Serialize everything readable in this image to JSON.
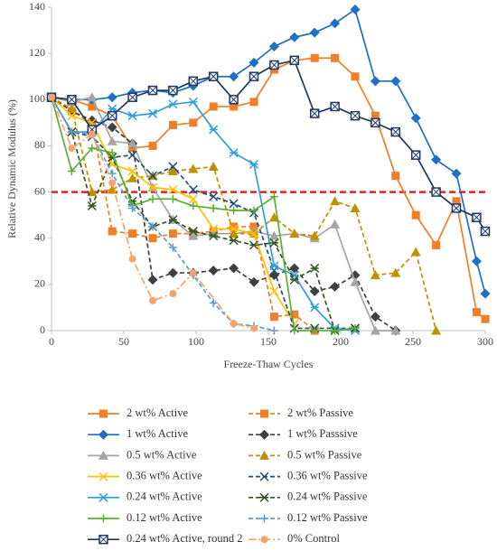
{
  "chart_data": {
    "type": "line",
    "xlabel": "Freeze-Thaw Cycles",
    "ylabel": "Relative Dynamic Modulus (%)",
    "xlim": [
      0,
      300
    ],
    "xticks": [
      0,
      50,
      100,
      150,
      200,
      250,
      300
    ],
    "ylim": [
      0,
      140
    ],
    "yticks": [
      0,
      20,
      40,
      60,
      80,
      100,
      120,
      140
    ],
    "threshold": 60,
    "threshold_color": "#e32222",
    "series": [
      {
        "name": "2 wt% Active",
        "color": "#f07f27",
        "marker": "square",
        "dash": "solid",
        "x": [
          0,
          14,
          28,
          42,
          56,
          70,
          84,
          98,
          112,
          126,
          140,
          154,
          168,
          182,
          196,
          210,
          224,
          238,
          252,
          266,
          280,
          294,
          300
        ],
        "values": [
          101,
          100,
          97,
          93,
          79,
          80,
          89,
          90,
          97,
          97,
          99,
          113,
          117,
          118,
          118,
          110,
          93,
          67,
          50,
          37,
          56,
          8,
          5
        ]
      },
      {
        "name": "2 wt% Passive",
        "color": "#f07f27",
        "marker": "square",
        "dash": "dash",
        "x": [
          0,
          14,
          28,
          42,
          56,
          70,
          84,
          98,
          112,
          126,
          140,
          154,
          168,
          182
        ],
        "values": [
          101,
          95,
          90,
          43,
          42,
          40,
          42,
          42,
          43,
          45,
          45,
          6,
          7,
          0
        ]
      },
      {
        "name": "1 wt% Active",
        "color": "#1f6fc5",
        "marker": "diamond",
        "dash": "solid",
        "x": [
          0,
          14,
          28,
          42,
          56,
          70,
          84,
          98,
          112,
          126,
          140,
          154,
          168,
          182,
          196,
          210,
          224,
          238,
          252,
          266,
          280,
          294,
          300
        ],
        "values": [
          101,
          100,
          100,
          101,
          103,
          104,
          103,
          106,
          110,
          110,
          116,
          123,
          127,
          129,
          133,
          139,
          108,
          108,
          92,
          74,
          68,
          30,
          16
        ]
      },
      {
        "name": "1 wt% Passsive",
        "color": "#404040",
        "marker": "diamond",
        "dash": "dash",
        "x": [
          0,
          14,
          28,
          42,
          56,
          70,
          84,
          98,
          112,
          126,
          140,
          154,
          168,
          182,
          196,
          210,
          224,
          238
        ],
        "values": [
          101,
          95,
          91,
          88,
          81,
          22,
          25,
          25,
          26,
          27,
          21,
          24,
          27,
          17,
          19,
          24,
          6,
          0
        ]
      },
      {
        "name": "0.5 wt% Active",
        "color": "#a5a5a5",
        "marker": "triangle",
        "dash": "solid",
        "x": [
          0,
          14,
          28,
          42,
          56,
          70,
          84,
          98,
          112,
          126,
          140,
          154,
          168,
          182,
          196,
          210,
          224,
          238
        ],
        "values": [
          101,
          99,
          101,
          82,
          81,
          62,
          48,
          41,
          42,
          42,
          43,
          41,
          42,
          40,
          46,
          21,
          0,
          0
        ]
      },
      {
        "name": "0.5 wt% Passive",
        "color": "#bf9000",
        "marker": "triangle",
        "dash": "dash",
        "x": [
          0,
          14,
          28,
          42,
          56,
          70,
          84,
          98,
          112,
          126,
          140,
          154,
          168,
          182,
          196,
          210,
          224,
          238,
          252,
          266
        ],
        "values": [
          101,
          96,
          60,
          61,
          66,
          67,
          69,
          70,
          71,
          42,
          42,
          49,
          42,
          41,
          56,
          53,
          24,
          25,
          34,
          0
        ]
      },
      {
        "name": "0.36 wt% Active",
        "color": "#ffc000",
        "marker": "x",
        "dash": "solid",
        "x": [
          0,
          14,
          28,
          42,
          56,
          70,
          84,
          98,
          112,
          126,
          140,
          154,
          168
        ],
        "values": [
          101,
          93,
          90,
          72,
          69,
          62,
          61,
          57,
          44,
          44,
          42,
          17,
          3
        ]
      },
      {
        "name": "0.36 wt% Passive",
        "color": "#1f4e79",
        "marker": "x",
        "dash": "dash",
        "x": [
          0,
          14,
          28,
          42,
          56,
          70,
          84,
          98,
          112,
          126,
          140,
          154,
          168,
          182,
          196,
          210
        ],
        "values": [
          101,
          86,
          84,
          75,
          76,
          67,
          71,
          61,
          58,
          55,
          51,
          26,
          1,
          1,
          1,
          1
        ]
      },
      {
        "name": "0.24 wt% Active",
        "color": "#2e9fd9",
        "marker": "star",
        "dash": "solid",
        "x": [
          0,
          14,
          28,
          42,
          56,
          70,
          84,
          98,
          112,
          126,
          140,
          154,
          168,
          182,
          196,
          210
        ],
        "values": [
          101,
          86,
          86,
          96,
          93,
          94,
          98,
          99,
          87,
          77,
          72,
          28,
          24,
          10,
          1,
          0
        ]
      },
      {
        "name": "0.24 wt% Passive",
        "color": "#375623",
        "marker": "star",
        "dash": "dash",
        "x": [
          0,
          14,
          28,
          42,
          56,
          70,
          84,
          98,
          112,
          126,
          140,
          154,
          168,
          182,
          196,
          210
        ],
        "values": [
          101,
          86,
          54,
          75,
          56,
          45,
          48,
          43,
          41,
          39,
          37,
          38,
          22,
          27,
          0,
          1
        ]
      },
      {
        "name": "0.12 wt% Active",
        "color": "#5bb030",
        "marker": "plus",
        "dash": "solid",
        "x": [
          0,
          14,
          28,
          42,
          56,
          70,
          84,
          98,
          112,
          126,
          140,
          154,
          168,
          182,
          196,
          210
        ],
        "values": [
          101,
          69,
          79,
          77,
          54,
          57,
          57,
          54,
          53,
          52,
          52,
          58,
          0,
          0,
          0,
          1
        ]
      },
      {
        "name": "0.12 wt% Passive",
        "color": "#5b9bd5",
        "marker": "plus",
        "dash": "dash",
        "x": [
          0,
          14,
          28,
          42,
          56,
          70,
          84,
          98,
          112,
          126,
          140,
          154
        ],
        "values": [
          101,
          86,
          85,
          68,
          53,
          45,
          36,
          24,
          12,
          3,
          2,
          0
        ]
      },
      {
        "name": "0.24 wt% Active, round 2",
        "color": "#1f3864",
        "marker": "boxsquare",
        "dash": "solid",
        "x": [
          0,
          14,
          28,
          42,
          56,
          70,
          84,
          98,
          112,
          126,
          140,
          154,
          168,
          182,
          196,
          210,
          224,
          238,
          252,
          266,
          280,
          294,
          300
        ],
        "values": [
          101,
          100,
          87,
          93,
          101,
          104,
          104,
          108,
          110,
          100,
          110,
          115,
          117,
          94,
          97,
          93,
          90,
          86,
          76,
          60,
          53,
          49,
          43
        ]
      },
      {
        "name": "0% Control",
        "color": "#f4a46a",
        "marker": "circle",
        "dash": "dashdot",
        "x": [
          0,
          14,
          28,
          42,
          56,
          70,
          84,
          98,
          126,
          140
        ],
        "values": [
          101,
          79,
          85,
          64,
          31,
          13,
          16,
          25,
          3,
          1
        ]
      }
    ]
  }
}
